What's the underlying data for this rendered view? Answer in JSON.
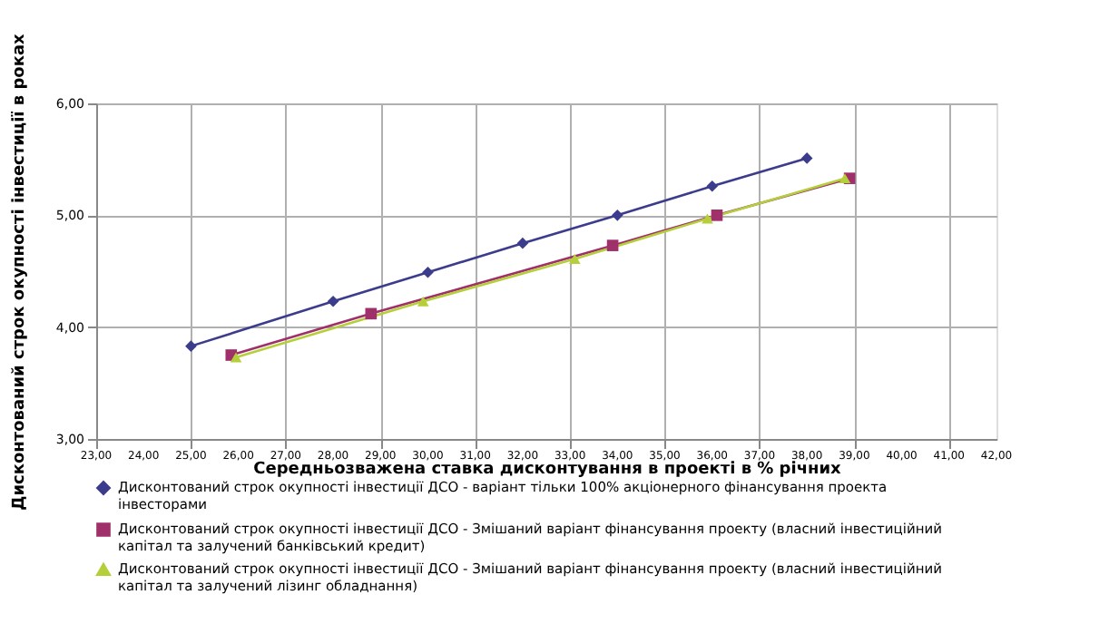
{
  "chart_data": {
    "type": "line",
    "xlabel": "Середньозважена ставка дисконтування в проекті в % річних",
    "ylabel": "Дисконтований строк окупності інвестиції в роках",
    "xlim": [
      23,
      42
    ],
    "ylim": [
      3,
      6
    ],
    "xticks": [
      {
        "value": 23,
        "label": "23,00"
      },
      {
        "value": 24,
        "label": "24,00"
      },
      {
        "value": 25,
        "label": "25,00"
      },
      {
        "value": 26,
        "label": "26,00"
      },
      {
        "value": 27,
        "label": "27,00"
      },
      {
        "value": 28,
        "label": "28,00"
      },
      {
        "value": 29,
        "label": "29,00"
      },
      {
        "value": 30,
        "label": "30,00"
      },
      {
        "value": 31,
        "label": "31,00"
      },
      {
        "value": 32,
        "label": "32,00"
      },
      {
        "value": 33,
        "label": "33,00"
      },
      {
        "value": 34,
        "label": "34,00"
      },
      {
        "value": 35,
        "label": "35,00"
      },
      {
        "value": 36,
        "label": "36,00"
      },
      {
        "value": 37,
        "label": "37,00"
      },
      {
        "value": 38,
        "label": "38,00"
      },
      {
        "value": 39,
        "label": "39,00"
      },
      {
        "value": 40,
        "label": "40,00"
      },
      {
        "value": 41,
        "label": "41,00"
      },
      {
        "value": 42,
        "label": "42,00"
      }
    ],
    "yticks": [
      {
        "value": 3,
        "label": "3,00"
      },
      {
        "value": 4,
        "label": "4,00"
      },
      {
        "value": 5,
        "label": "5,00"
      },
      {
        "value": 6,
        "label": "6,00"
      }
    ],
    "grid": true,
    "legend": "bottom",
    "line_style": "solid",
    "series": [
      {
        "name": "Дисконтований строк окупності інвестиції ДСО  - варіант тільки 100% акціонерного фінансування проекта інвесторами",
        "color": "#3c3c8c",
        "marker": "diamond",
        "x": [
          25,
          28,
          30,
          32,
          34,
          36,
          38
        ],
        "values": [
          3.83,
          4.23,
          4.49,
          4.75,
          5.0,
          5.26,
          5.51
        ]
      },
      {
        "name": "Дисконтований строк окупності інвестиції ДСО - Змішаний варіант фінансування проекту (власний інвестиційний капітал та залучений банківський кредит)",
        "color": "#a0306a",
        "marker": "square",
        "x": [
          25.85,
          28.8,
          33.9,
          36.1,
          38.9
        ],
        "values": [
          3.75,
          4.12,
          4.73,
          5.0,
          5.33
        ]
      },
      {
        "name": "Дисконтований строк окупності інвестиції ДСО - Змішаний варіант фінансування проекту (власний інвестиційний капітал та залучений лізинг обладнання)",
        "color": "#b5cf3a",
        "marker": "triangle",
        "x": [
          25.95,
          29.9,
          33.1,
          35.9,
          38.8
        ],
        "values": [
          3.73,
          4.23,
          4.61,
          4.97,
          5.33
        ]
      }
    ]
  }
}
